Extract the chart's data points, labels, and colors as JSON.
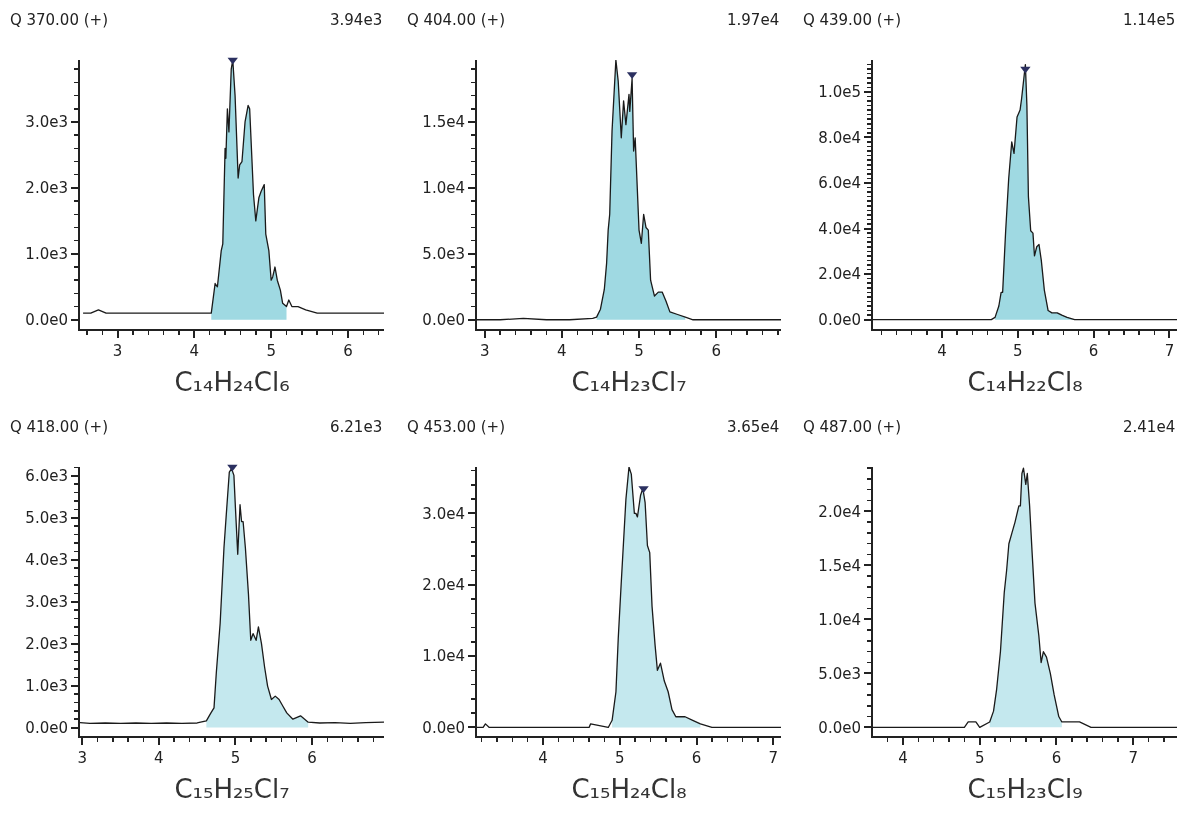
{
  "chart_data": [
    {
      "type": "line",
      "title": "Q 370.00 (+)",
      "xlabel": "C₁₄H₂₄Cl₆",
      "annotations": [
        "3.94e3"
      ],
      "xlim": [
        2.51,
        6.47
      ],
      "ylim": [
        -140,
        3940
      ],
      "xticks": [
        {
          "value": 2.6,
          "label": null
        },
        {
          "value": 2.8,
          "label": null
        },
        3,
        {
          "value": 3.2,
          "label": null
        },
        {
          "value": 3.4,
          "label": null
        },
        {
          "value": 3.6,
          "label": null
        },
        {
          "value": 3.8,
          "label": null
        },
        4,
        {
          "value": 4.2,
          "label": null
        },
        {
          "value": 4.4,
          "label": null
        },
        {
          "value": 4.6,
          "label": null
        },
        {
          "value": 4.8,
          "label": null
        },
        5,
        {
          "value": 5.2,
          "label": null
        },
        {
          "value": 5.4,
          "label": null
        },
        {
          "value": 5.6,
          "label": null
        },
        {
          "value": 5.8,
          "label": null
        },
        6,
        {
          "value": 6.2,
          "label": null
        },
        {
          "value": 6.4,
          "label": null
        }
      ],
      "yticks": [
        {
          "value": 0,
          "label": "0.0e0"
        },
        {
          "value": 200,
          "label": null
        },
        {
          "value": 400,
          "label": null
        },
        {
          "value": 600,
          "label": null
        },
        {
          "value": 800,
          "label": null
        },
        {
          "value": 1000,
          "label": "1.0e3"
        },
        {
          "value": 1200,
          "label": null
        },
        {
          "value": 1400,
          "label": null
        },
        {
          "value": 1600,
          "label": null
        },
        {
          "value": 1800,
          "label": null
        },
        {
          "value": 2000,
          "label": "2.0e3"
        },
        {
          "value": 2200,
          "label": null
        },
        {
          "value": 2400,
          "label": null
        },
        {
          "value": 2600,
          "label": null
        },
        {
          "value": 2800,
          "label": null
        },
        {
          "value": 3000,
          "label": "3.0e3"
        },
        {
          "value": 3200,
          "label": null
        },
        {
          "value": 3400,
          "label": null
        },
        {
          "value": 3600,
          "label": null
        },
        {
          "value": 3800,
          "label": null
        }
      ],
      "series": [
        {
          "type": "area",
          "color": "#9fd9e2",
          "x": [
            4.22,
            4.27,
            4.3,
            4.35,
            4.37,
            4.4,
            4.41,
            4.43,
            4.45,
            4.48,
            4.5,
            4.53,
            4.57,
            4.59,
            4.62,
            4.66,
            4.7,
            4.72,
            4.77,
            4.8,
            4.84,
            4.87,
            4.91,
            4.93,
            4.97,
            5.0,
            5.02,
            5.05,
            5.08,
            5.12,
            5.15,
            5.2
          ],
          "values": [
            100,
            550,
            500,
            1050,
            1150,
            2600,
            2450,
            3200,
            2850,
            3800,
            3940,
            3400,
            2150,
            2350,
            2400,
            3000,
            3250,
            3200,
            1900,
            1500,
            1850,
            1950,
            2050,
            1300,
            1050,
            600,
            650,
            800,
            600,
            450,
            250,
            200
          ]
        },
        {
          "color": "#1a1a1a",
          "x": [
            2.55,
            2.65,
            2.75,
            2.85,
            2.95,
            3.1,
            3.25,
            3.4,
            3.55,
            3.7,
            3.85,
            4.0,
            4.1,
            4.2,
            4.22,
            4.27,
            4.3,
            4.35,
            4.37,
            4.4,
            4.41,
            4.43,
            4.45,
            4.48,
            4.5,
            4.53,
            4.57,
            4.59,
            4.62,
            4.66,
            4.7,
            4.72,
            4.77,
            4.8,
            4.84,
            4.87,
            4.91,
            4.93,
            4.97,
            5.0,
            5.02,
            5.05,
            5.08,
            5.12,
            5.15,
            5.2,
            5.23,
            5.27,
            5.35,
            5.45,
            5.6,
            5.75,
            5.9,
            6.05,
            6.2,
            6.35,
            6.47
          ],
          "values": [
            100,
            100,
            150,
            100,
            100,
            100,
            100,
            100,
            100,
            100,
            100,
            100,
            100,
            100,
            100,
            550,
            500,
            1050,
            1150,
            2600,
            2450,
            3200,
            2850,
            3800,
            3940,
            3400,
            2150,
            2350,
            2400,
            3000,
            3250,
            3200,
            1900,
            1500,
            1850,
            1950,
            2050,
            1300,
            1050,
            600,
            650,
            800,
            600,
            450,
            250,
            200,
            300,
            200,
            200,
            150,
            100,
            100,
            100,
            100,
            100,
            100,
            100
          ]
        },
        {
          "type": "scatter",
          "marker": "triangle",
          "color": "#2b3060",
          "x": [
            4.5
          ],
          "values": [
            3940
          ]
        }
      ]
    },
    {
      "type": "line",
      "title": "Q 404.00 (+)",
      "xlabel": "C₁₄H₂₃Cl₇",
      "annotations": [
        "1.97e4"
      ],
      "xlim": [
        2.9,
        6.84
      ],
      "ylim": [
        -700,
        19700
      ],
      "xticks": [
        3,
        {
          "value": 3.2,
          "label": null
        },
        {
          "value": 3.4,
          "label": null
        },
        {
          "value": 3.6,
          "label": null
        },
        {
          "value": 3.8,
          "label": null
        },
        4,
        {
          "value": 4.2,
          "label": null
        },
        {
          "value": 4.4,
          "label": null
        },
        {
          "value": 4.6,
          "label": null
        },
        {
          "value": 4.8,
          "label": null
        },
        5,
        {
          "value": 5.2,
          "label": null
        },
        {
          "value": 5.4,
          "label": null
        },
        {
          "value": 5.6,
          "label": null
        },
        {
          "value": 5.8,
          "label": null
        },
        6,
        {
          "value": 6.2,
          "label": null
        },
        {
          "value": 6.4,
          "label": null
        },
        {
          "value": 6.6,
          "label": null
        },
        {
          "value": 6.8,
          "label": null
        }
      ],
      "yticks": [
        {
          "value": 0,
          "label": "0.0e0"
        },
        {
          "value": 1000,
          "label": null
        },
        {
          "value": 2000,
          "label": null
        },
        {
          "value": 3000,
          "label": null
        },
        {
          "value": 4000,
          "label": null
        },
        {
          "value": 5000,
          "label": "5.0e3"
        },
        {
          "value": 6000,
          "label": null
        },
        {
          "value": 7000,
          "label": null
        },
        {
          "value": 8000,
          "label": null
        },
        {
          "value": 9000,
          "label": null
        },
        {
          "value": 10000,
          "label": "1.0e4"
        },
        {
          "value": 11000,
          "label": null
        },
        {
          "value": 12000,
          "label": null
        },
        {
          "value": 13000,
          "label": null
        },
        {
          "value": 14000,
          "label": null
        },
        {
          "value": 15000,
          "label": "1.5e4"
        },
        {
          "value": 16000,
          "label": null
        },
        {
          "value": 17000,
          "label": null
        },
        {
          "value": 18000,
          "label": null
        },
        {
          "value": 19000,
          "label": null
        }
      ],
      "series": [
        {
          "type": "area",
          "color": "#9fd9e2",
          "x": [
            4.45,
            4.5,
            4.55,
            4.58,
            4.6,
            4.62,
            4.65,
            4.7,
            4.73,
            4.77,
            4.8,
            4.83,
            4.87,
            4.88,
            4.91,
            4.93,
            4.95,
            5.0,
            5.03,
            5.06,
            5.09,
            5.12,
            5.15,
            5.2,
            5.25,
            5.3,
            5.35,
            5.4,
            5.5,
            5.6
          ],
          "values": [
            200,
            800,
            2300,
            4300,
            6800,
            8000,
            14300,
            19700,
            18100,
            13800,
            16600,
            14800,
            17100,
            15800,
            18300,
            12800,
            13800,
            6800,
            5800,
            8000,
            7000,
            6800,
            3000,
            1800,
            2100,
            2100,
            1400,
            600,
            400,
            200
          ]
        },
        {
          "color": "#1a1a1a",
          "x": [
            2.9,
            3.2,
            3.5,
            3.8,
            4.1,
            4.4,
            4.45,
            4.5,
            4.55,
            4.58,
            4.6,
            4.62,
            4.65,
            4.7,
            4.73,
            4.77,
            4.8,
            4.83,
            4.87,
            4.88,
            4.91,
            4.93,
            4.95,
            5.0,
            5.03,
            5.06,
            5.09,
            5.12,
            5.15,
            5.2,
            5.25,
            5.3,
            5.35,
            5.4,
            5.5,
            5.6,
            5.7,
            6.0,
            6.3,
            6.6,
            6.84
          ],
          "values": [
            0,
            0,
            100,
            0,
            0,
            100,
            200,
            800,
            2300,
            4300,
            6800,
            8000,
            14300,
            19700,
            18100,
            13800,
            16600,
            14800,
            17100,
            15800,
            18300,
            12800,
            13800,
            6800,
            5800,
            8000,
            7000,
            6800,
            3000,
            1800,
            2100,
            2100,
            1400,
            600,
            400,
            200,
            0,
            0,
            0,
            0,
            0
          ]
        },
        {
          "type": "scatter",
          "marker": "triangle",
          "color": "#2b3060",
          "x": [
            4.91
          ],
          "values": [
            18600
          ]
        }
      ]
    },
    {
      "type": "line",
      "title": "Q 439.00 (+)",
      "xlabel": "C₁₄H₂₂Cl₈",
      "annotations": [
        "1.14e5"
      ],
      "xlim": [
        3.09,
        7.1
      ],
      "ylim": [
        -4100,
        114000
      ],
      "xticks": [
        {
          "value": 3.2,
          "label": null
        },
        {
          "value": 3.4,
          "label": null
        },
        {
          "value": 3.6,
          "label": null
        },
        {
          "value": 3.8,
          "label": null
        },
        4,
        {
          "value": 4.2,
          "label": null
        },
        {
          "value": 4.4,
          "label": null
        },
        {
          "value": 4.6,
          "label": null
        },
        {
          "value": 4.8,
          "label": null
        },
        5,
        {
          "value": 5.2,
          "label": null
        },
        {
          "value": 5.4,
          "label": null
        },
        {
          "value": 5.6,
          "label": null
        },
        {
          "value": 5.8,
          "label": null
        },
        6,
        {
          "value": 6.2,
          "label": null
        },
        {
          "value": 6.4,
          "label": null
        },
        {
          "value": 6.6,
          "label": null
        },
        {
          "value": 6.8,
          "label": null
        },
        7
      ],
      "yticks": [
        {
          "value": 0,
          "label": "0.0e0"
        },
        {
          "value": 2000,
          "label": null
        },
        {
          "value": 4000,
          "label": null
        },
        {
          "value": 6000,
          "label": null
        },
        {
          "value": 8000,
          "label": null
        },
        {
          "value": 10000,
          "label": null
        },
        {
          "value": 12000,
          "label": null
        },
        {
          "value": 14000,
          "label": null
        },
        {
          "value": 16000,
          "label": null
        },
        {
          "value": 18000,
          "label": null
        },
        {
          "value": 20000,
          "label": "2.0e4"
        },
        {
          "value": 22000,
          "label": null
        },
        {
          "value": 24000,
          "label": null
        },
        {
          "value": 26000,
          "label": null
        },
        {
          "value": 28000,
          "label": null
        },
        {
          "value": 30000,
          "label": null
        },
        {
          "value": 32000,
          "label": null
        },
        {
          "value": 34000,
          "label": null
        },
        {
          "value": 36000,
          "label": null
        },
        {
          "value": 38000,
          "label": null
        },
        {
          "value": 40000,
          "label": "4.0e4"
        },
        {
          "value": 42000,
          "label": null
        },
        {
          "value": 44000,
          "label": null
        },
        {
          "value": 46000,
          "label": null
        },
        {
          "value": 48000,
          "label": null
        },
        {
          "value": 50000,
          "label": null
        },
        {
          "value": 52000,
          "label": null
        },
        {
          "value": 54000,
          "label": null
        },
        {
          "value": 56000,
          "label": null
        },
        {
          "value": 58000,
          "label": null
        },
        {
          "value": 60000,
          "label": "6.0e4"
        },
        {
          "value": 62000,
          "label": null
        },
        {
          "value": 64000,
          "label": null
        },
        {
          "value": 66000,
          "label": null
        },
        {
          "value": 68000,
          "label": null
        },
        {
          "value": 70000,
          "label": null
        },
        {
          "value": 72000,
          "label": null
        },
        {
          "value": 74000,
          "label": null
        },
        {
          "value": 76000,
          "label": null
        },
        {
          "value": 78000,
          "label": null
        },
        {
          "value": 80000,
          "label": "8.0e4"
        },
        {
          "value": 82000,
          "label": null
        },
        {
          "value": 84000,
          "label": null
        },
        {
          "value": 86000,
          "label": null
        },
        {
          "value": 88000,
          "label": null
        },
        {
          "value": 90000,
          "label": null
        },
        {
          "value": 92000,
          "label": null
        },
        {
          "value": 94000,
          "label": null
        },
        {
          "value": 96000,
          "label": null
        },
        {
          "value": 98000,
          "label": null
        },
        {
          "value": 100000,
          "label": "1.0e5"
        },
        {
          "value": 102000,
          "label": null
        },
        {
          "value": 104000,
          "label": null
        },
        {
          "value": 106000,
          "label": null
        },
        {
          "value": 108000,
          "label": null
        },
        {
          "value": 110000,
          "label": null
        },
        {
          "value": 112000,
          "label": null
        }
      ],
      "series": [
        {
          "type": "area",
          "color": "#9fd9e2",
          "x": [
            4.7,
            4.75,
            4.78,
            4.8,
            4.84,
            4.88,
            4.91,
            4.92,
            4.95,
            4.99,
            5.03,
            5.05,
            5.08,
            5.1,
            5.12,
            5.14,
            5.17,
            5.2,
            5.22,
            5.25,
            5.28,
            5.31,
            5.35,
            5.4,
            5.45,
            5.52,
            5.58,
            5.65,
            5.75
          ],
          "values": [
            1000,
            6000,
            12000,
            12000,
            39000,
            62000,
            74000,
            78000,
            73000,
            89000,
            92000,
            97000,
            106000,
            112000,
            94000,
            54000,
            39000,
            38000,
            28000,
            32000,
            33000,
            26000,
            13000,
            4000,
            3000,
            3000,
            2000,
            1000,
            0
          ]
        },
        {
          "color": "#1a1a1a",
          "x": [
            3.09,
            4.65,
            4.7,
            4.75,
            4.78,
            4.8,
            4.84,
            4.88,
            4.91,
            4.92,
            4.95,
            4.99,
            5.03,
            5.05,
            5.08,
            5.1,
            5.12,
            5.14,
            5.17,
            5.2,
            5.22,
            5.25,
            5.28,
            5.31,
            5.35,
            5.4,
            5.45,
            5.52,
            5.58,
            5.65,
            5.75,
            5.88,
            7.1
          ],
          "values": [
            0,
            0,
            1000,
            6000,
            12000,
            12000,
            39000,
            62000,
            74000,
            78000,
            73000,
            89000,
            92000,
            97000,
            106000,
            112000,
            94000,
            54000,
            39000,
            38000,
            28000,
            32000,
            33000,
            26000,
            13000,
            4000,
            3000,
            3000,
            2000,
            1000,
            0,
            0,
            0
          ]
        },
        {
          "type": "scatter",
          "marker": "triangle",
          "color": "#2b3060",
          "x": [
            5.1
          ],
          "values": [
            110000
          ]
        }
      ]
    },
    {
      "type": "line",
      "title": "Q 418.00 (+)",
      "xlabel": "C₁₅H₂₅Cl₇",
      "annotations": [
        "6.21e3"
      ],
      "xlim": [
        2.97,
        6.94
      ],
      "ylim": [
        -200,
        6210
      ],
      "xticks": [
        3,
        {
          "value": 3.2,
          "label": null
        },
        {
          "value": 3.4,
          "label": null
        },
        {
          "value": 3.6,
          "label": null
        },
        {
          "value": 3.8,
          "label": null
        },
        4,
        {
          "value": 4.2,
          "label": null
        },
        {
          "value": 4.4,
          "label": null
        },
        {
          "value": 4.6,
          "label": null
        },
        {
          "value": 4.8,
          "label": null
        },
        5,
        {
          "value": 5.2,
          "label": null
        },
        {
          "value": 5.4,
          "label": null
        },
        {
          "value": 5.6,
          "label": null
        },
        {
          "value": 5.8,
          "label": null
        },
        6,
        {
          "value": 6.2,
          "label": null
        },
        {
          "value": 6.4,
          "label": null
        },
        {
          "value": 6.6,
          "label": null
        },
        {
          "value": 6.8,
          "label": null
        }
      ],
      "yticks": [
        {
          "value": 0,
          "label": "0.0e0"
        },
        {
          "value": 200,
          "label": null
        },
        {
          "value": 400,
          "label": null
        },
        {
          "value": 600,
          "label": null
        },
        {
          "value": 800,
          "label": null
        },
        {
          "value": 1000,
          "label": "1.0e3"
        },
        {
          "value": 1200,
          "label": null
        },
        {
          "value": 1400,
          "label": null
        },
        {
          "value": 1600,
          "label": null
        },
        {
          "value": 1800,
          "label": null
        },
        {
          "value": 2000,
          "label": "2.0e3"
        },
        {
          "value": 2200,
          "label": null
        },
        {
          "value": 2400,
          "label": null
        },
        {
          "value": 2600,
          "label": null
        },
        {
          "value": 2800,
          "label": null
        },
        {
          "value": 3000,
          "label": "3.0e3"
        },
        {
          "value": 3200,
          "label": null
        },
        {
          "value": 3400,
          "label": null
        },
        {
          "value": 3600,
          "label": null
        },
        {
          "value": 3800,
          "label": null
        },
        {
          "value": 4000,
          "label": "4.0e3"
        },
        {
          "value": 4200,
          "label": null
        },
        {
          "value": 4400,
          "label": null
        },
        {
          "value": 4600,
          "label": null
        },
        {
          "value": 4800,
          "label": null
        },
        {
          "value": 5000,
          "label": "5.0e3"
        },
        {
          "value": 5200,
          "label": null
        },
        {
          "value": 5400,
          "label": null
        },
        {
          "value": 5600,
          "label": null
        },
        {
          "value": 5800,
          "label": null
        },
        {
          "value": 6000,
          "label": "6.0e3"
        },
        {
          "value": 6200,
          "label": null
        }
      ],
      "series": [
        {
          "type": "area",
          "color": "#c4e8ee",
          "x": [
            4.62,
            4.68,
            4.72,
            4.75,
            4.8,
            4.85,
            4.88,
            4.92,
            4.95,
            4.98,
            5.0,
            5.03,
            5.06,
            5.08,
            5.1,
            5.13,
            5.17,
            5.2,
            5.23,
            5.27,
            5.3,
            5.34,
            5.38,
            5.42,
            5.47,
            5.52,
            5.57,
            5.62,
            5.67,
            5.75,
            5.85,
            5.95
          ],
          "values": [
            160,
            350,
            470,
            1300,
            2480,
            4280,
            5070,
            6090,
            6170,
            6010,
            5230,
            4130,
            5310,
            4910,
            4910,
            4280,
            3180,
            2080,
            2240,
            2080,
            2400,
            2000,
            1450,
            990,
            670,
            750,
            670,
            510,
            350,
            200,
            280,
            130
          ]
        },
        {
          "color": "#1a1a1a",
          "x": [
            2.97,
            3.1,
            3.3,
            3.5,
            3.7,
            3.9,
            4.1,
            4.3,
            4.5,
            4.62,
            4.68,
            4.72,
            4.75,
            4.8,
            4.85,
            4.88,
            4.92,
            4.95,
            4.98,
            5.0,
            5.03,
            5.06,
            5.08,
            5.1,
            5.13,
            5.17,
            5.2,
            5.23,
            5.27,
            5.3,
            5.34,
            5.38,
            5.42,
            5.47,
            5.52,
            5.57,
            5.62,
            5.67,
            5.75,
            5.85,
            5.95,
            6.1,
            6.3,
            6.5,
            6.7,
            6.94
          ],
          "values": [
            120,
            100,
            110,
            100,
            110,
            100,
            110,
            100,
            110,
            160,
            350,
            470,
            1300,
            2480,
            4280,
            5070,
            6090,
            6170,
            6010,
            5230,
            4130,
            5310,
            4910,
            4910,
            4280,
            3180,
            2080,
            2240,
            2080,
            2400,
            2000,
            1450,
            990,
            670,
            750,
            670,
            510,
            350,
            200,
            280,
            130,
            110,
            120,
            100,
            120,
            130
          ]
        },
        {
          "type": "scatter",
          "marker": "triangle",
          "color": "#2b3060",
          "x": [
            4.96
          ],
          "values": [
            6210
          ]
        }
      ]
    },
    {
      "type": "line",
      "title": "Q 453.00 (+)",
      "xlabel": "C₁₅H₂₄Cl₈",
      "annotations": [
        "3.65e4"
      ],
      "xlim": [
        3.14,
        7.1
      ],
      "ylim": [
        -1200,
        36500
      ],
      "xticks": [
        {
          "value": 3.2,
          "label": null
        },
        {
          "value": 3.4,
          "label": null
        },
        {
          "value": 3.6,
          "label": null
        },
        {
          "value": 3.8,
          "label": null
        },
        4,
        {
          "value": 4.2,
          "label": null
        },
        {
          "value": 4.4,
          "label": null
        },
        {
          "value": 4.6,
          "label": null
        },
        {
          "value": 4.8,
          "label": null
        },
        5,
        {
          "value": 5.2,
          "label": null
        },
        {
          "value": 5.4,
          "label": null
        },
        {
          "value": 5.6,
          "label": null
        },
        {
          "value": 5.8,
          "label": null
        },
        6,
        {
          "value": 6.2,
          "label": null
        },
        {
          "value": 6.4,
          "label": null
        },
        {
          "value": 6.6,
          "label": null
        },
        {
          "value": 6.8,
          "label": null
        },
        7
      ],
      "yticks": [
        {
          "value": 0,
          "label": "0.0e0"
        },
        {
          "value": 2000,
          "label": null
        },
        {
          "value": 4000,
          "label": null
        },
        {
          "value": 6000,
          "label": null
        },
        {
          "value": 8000,
          "label": null
        },
        {
          "value": 10000,
          "label": "1.0e4"
        },
        {
          "value": 12000,
          "label": null
        },
        {
          "value": 14000,
          "label": null
        },
        {
          "value": 16000,
          "label": null
        },
        {
          "value": 18000,
          "label": null
        },
        {
          "value": 20000,
          "label": "2.0e4"
        },
        {
          "value": 22000,
          "label": null
        },
        {
          "value": 24000,
          "label": null
        },
        {
          "value": 26000,
          "label": null
        },
        {
          "value": 28000,
          "label": null
        },
        {
          "value": 30000,
          "label": "3.0e4"
        },
        {
          "value": 32000,
          "label": null
        },
        {
          "value": 34000,
          "label": null
        },
        {
          "value": 36000,
          "label": null
        }
      ],
      "series": [
        {
          "type": "area",
          "color": "#c4e8ee",
          "x": [
            4.9,
            4.95,
            4.98,
            5.02,
            5.08,
            5.12,
            5.15,
            5.19,
            5.21,
            5.23,
            5.27,
            5.3,
            5.33,
            5.36,
            5.39,
            5.42,
            5.46,
            5.49,
            5.53,
            5.58,
            5.63,
            5.68,
            5.73,
            5.85,
            5.95,
            6.05
          ],
          "values": [
            1000,
            5000,
            12500,
            20500,
            32000,
            36500,
            35500,
            30000,
            30000,
            29500,
            32500,
            33500,
            31500,
            25500,
            24500,
            17000,
            11500,
            8000,
            9000,
            6500,
            5000,
            2500,
            1500,
            1500,
            1000,
            500
          ]
        },
        {
          "color": "#1a1a1a",
          "x": [
            3.14,
            3.22,
            3.25,
            3.3,
            4.6,
            4.62,
            4.85,
            4.9,
            4.95,
            4.98,
            5.02,
            5.08,
            5.12,
            5.15,
            5.19,
            5.21,
            5.23,
            5.27,
            5.3,
            5.33,
            5.36,
            5.39,
            5.42,
            5.46,
            5.49,
            5.53,
            5.58,
            5.63,
            5.68,
            5.73,
            5.85,
            5.95,
            6.05,
            6.2,
            6.45,
            7.1
          ],
          "values": [
            0,
            0,
            500,
            0,
            0,
            500,
            0,
            1000,
            5000,
            12500,
            20500,
            32000,
            36500,
            35500,
            30000,
            30000,
            29500,
            32500,
            33500,
            31500,
            25500,
            24500,
            17000,
            11500,
            8000,
            9000,
            6500,
            5000,
            2500,
            1500,
            1500,
            1000,
            500,
            0,
            0,
            0
          ]
        },
        {
          "type": "scatter",
          "marker": "triangle",
          "color": "#2b3060",
          "x": [
            5.31
          ],
          "values": [
            33500
          ]
        }
      ]
    },
    {
      "type": "line",
      "title": "Q 487.00 (+)",
      "xlabel": "C₁₅H₂₃Cl₉",
      "annotations": [
        "2.41e4"
      ],
      "xlim": [
        3.61,
        7.57
      ],
      "ylim": [
        -800,
        24100
      ],
      "xticks": [
        {
          "value": 3.8,
          "label": null
        },
        4,
        {
          "value": 4.2,
          "label": null
        },
        {
          "value": 4.4,
          "label": null
        },
        {
          "value": 4.6,
          "label": null
        },
        {
          "value": 4.8,
          "label": null
        },
        5,
        {
          "value": 5.2,
          "label": null
        },
        {
          "value": 5.4,
          "label": null
        },
        {
          "value": 5.6,
          "label": null
        },
        {
          "value": 5.8,
          "label": null
        },
        6,
        {
          "value": 6.2,
          "label": null
        },
        {
          "value": 6.4,
          "label": null
        },
        {
          "value": 6.6,
          "label": null
        },
        {
          "value": 6.8,
          "label": null
        },
        7,
        {
          "value": 7.2,
          "label": null
        },
        {
          "value": 7.4,
          "label": null
        }
      ],
      "yticks": [
        {
          "value": 0,
          "label": "0.0e0"
        },
        {
          "value": 1000,
          "label": null
        },
        {
          "value": 2000,
          "label": null
        },
        {
          "value": 3000,
          "label": null
        },
        {
          "value": 4000,
          "label": null
        },
        {
          "value": 5000,
          "label": "5.0e3"
        },
        {
          "value": 6000,
          "label": null
        },
        {
          "value": 7000,
          "label": null
        },
        {
          "value": 8000,
          "label": null
        },
        {
          "value": 9000,
          "label": null
        },
        {
          "value": 10000,
          "label": "1.0e4"
        },
        {
          "value": 11000,
          "label": null
        },
        {
          "value": 12000,
          "label": null
        },
        {
          "value": 13000,
          "label": null
        },
        {
          "value": 14000,
          "label": null
        },
        {
          "value": 15000,
          "label": "1.5e4"
        },
        {
          "value": 16000,
          "label": null
        },
        {
          "value": 17000,
          "label": null
        },
        {
          "value": 18000,
          "label": null
        },
        {
          "value": 19000,
          "label": null
        },
        {
          "value": 20000,
          "label": "2.0e4"
        },
        {
          "value": 21000,
          "label": null
        },
        {
          "value": 22000,
          "label": null
        },
        {
          "value": 23000,
          "label": null
        },
        {
          "value": 24000,
          "label": null
        }
      ],
      "series": [
        {
          "type": "area",
          "color": "#c4e8ee",
          "x": [
            5.13,
            5.18,
            5.22,
            5.27,
            5.32,
            5.35,
            5.38,
            5.42,
            5.46,
            5.51,
            5.53,
            5.55,
            5.57,
            5.6,
            5.62,
            5.65,
            5.68,
            5.72,
            5.77,
            5.8,
            5.83,
            5.87,
            5.92,
            5.97,
            6.03,
            6.07
          ],
          "values": [
            500,
            1500,
            3500,
            7000,
            12500,
            14500,
            17000,
            18000,
            19000,
            20500,
            20500,
            23500,
            24000,
            22500,
            23500,
            20500,
            16500,
            11500,
            8500,
            6000,
            7000,
            6500,
            5000,
            3000,
            1000,
            500
          ]
        },
        {
          "color": "#1a1a1a",
          "x": [
            3.61,
            4.75,
            4.8,
            4.85,
            4.95,
            5.0,
            5.13,
            5.18,
            5.22,
            5.27,
            5.32,
            5.35,
            5.38,
            5.42,
            5.46,
            5.51,
            5.53,
            5.55,
            5.57,
            5.6,
            5.62,
            5.65,
            5.68,
            5.72,
            5.77,
            5.8,
            5.83,
            5.87,
            5.92,
            5.97,
            6.03,
            6.07,
            6.15,
            6.3,
            6.45,
            6.5,
            7.57
          ],
          "values": [
            0,
            0,
            0,
            500,
            500,
            0,
            500,
            1500,
            3500,
            7000,
            12500,
            14500,
            17000,
            18000,
            19000,
            20500,
            20500,
            23500,
            24000,
            22500,
            23500,
            20500,
            16500,
            11500,
            8500,
            6000,
            7000,
            6500,
            5000,
            3000,
            1000,
            500,
            500,
            500,
            0,
            0,
            0
          ]
        }
      ]
    }
  ]
}
